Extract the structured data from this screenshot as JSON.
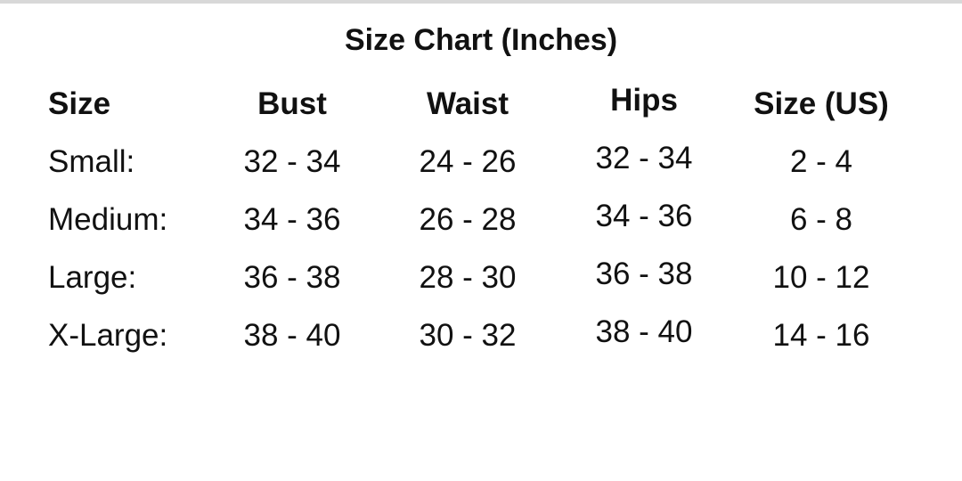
{
  "title": "Size Chart (Inches)",
  "headers": [
    "Size",
    "Bust",
    "Waist",
    "Hips",
    "Size (US)"
  ],
  "rows": [
    [
      "Small:",
      "32 - 34",
      "24 - 26",
      "32 - 34",
      "2 - 4"
    ],
    [
      "Medium:",
      "34 - 36",
      "26 - 28",
      "34 - 36",
      "6 - 8"
    ],
    [
      "Large:",
      "36 - 38",
      "28 - 30",
      "36 - 38",
      "10 - 12"
    ],
    [
      "X-Large:",
      "38 - 40",
      "30 - 32",
      "38 - 40",
      "14 - 16"
    ]
  ]
}
